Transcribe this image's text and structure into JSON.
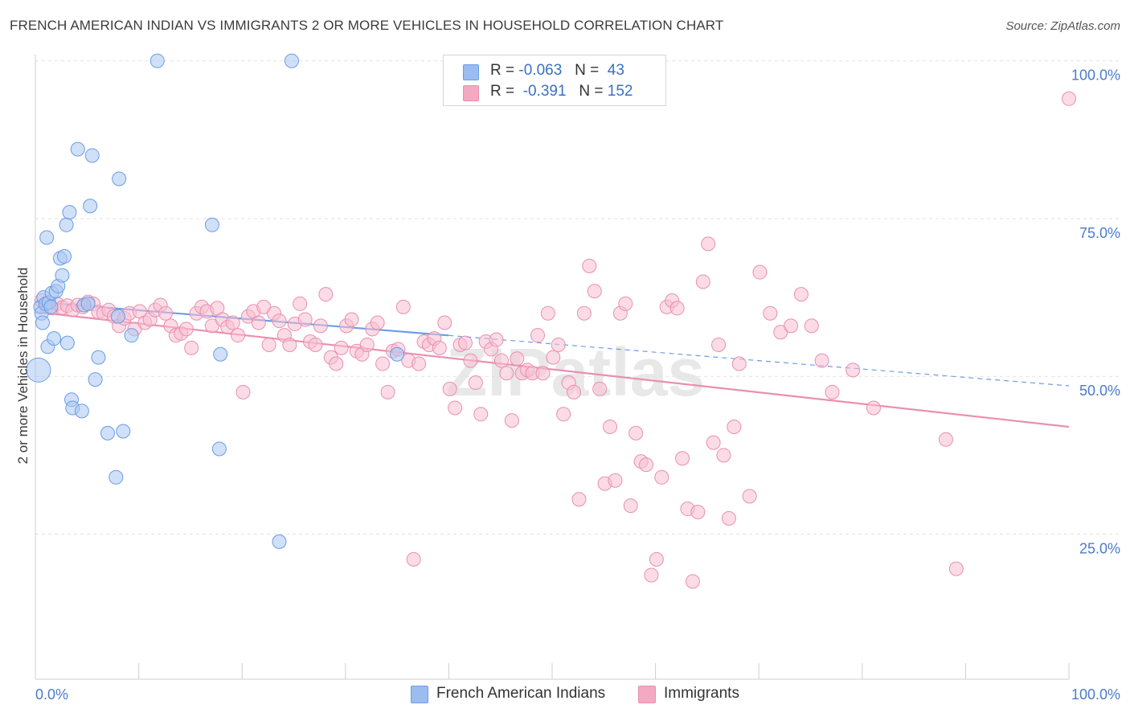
{
  "title": "FRENCH AMERICAN INDIAN VS IMMIGRANTS 2 OR MORE VEHICLES IN HOUSEHOLD CORRELATION CHART",
  "source": "Source: ZipAtlas.com",
  "watermark": "ZIPatlas",
  "legend": {
    "rows": [
      {
        "r_label": "R =",
        "r_value": "-0.063",
        "n_label": "N =",
        "n_value": "43",
        "color": "#9bbcf0"
      },
      {
        "r_label": "R =",
        "r_value": "-0.391",
        "n_label": "N =",
        "n_value": "152",
        "color": "#f4a9c2"
      }
    ]
  },
  "bottom_legend": [
    {
      "label": "French American Indians",
      "color": "#9bbcf0"
    },
    {
      "label": "Immigrants",
      "color": "#f4a9c2"
    }
  ],
  "chart_data": {
    "type": "scatter",
    "title": "FRENCH AMERICAN INDIAN VS IMMIGRANTS 2 OR MORE VEHICLES IN HOUSEHOLD CORRELATION CHART",
    "xlabel": "",
    "ylabel": "2 or more Vehicles in Household",
    "xlim": [
      0,
      100
    ],
    "ylim": [
      2,
      102
    ],
    "x_tick_labels": {
      "left": "0.0%",
      "right": "100.0%"
    },
    "y_ticks": [
      {
        "value": 100,
        "label": "100.0%"
      },
      {
        "value": 75,
        "label": "75.0%"
      },
      {
        "value": 50,
        "label": "50.0%"
      },
      {
        "value": 25,
        "label": "25.0%"
      }
    ],
    "grid": true,
    "series": [
      {
        "name": "French American Indians",
        "color": "#6a9de6",
        "fill": "#a9c6f2",
        "trend": {
          "x0": 0,
          "y0": 61.8,
          "x1": 100,
          "y1": 48.5,
          "solid_until": 40
        },
        "points": [
          [
            0.3,
            51.0
          ],
          [
            0.5,
            61.0
          ],
          [
            0.6,
            60.0
          ],
          [
            0.7,
            58.5
          ],
          [
            0.8,
            62.5
          ],
          [
            1.0,
            61.5
          ],
          [
            1.1,
            72.0
          ],
          [
            1.2,
            54.7
          ],
          [
            1.3,
            61.7
          ],
          [
            1.5,
            61.0
          ],
          [
            1.6,
            63.2
          ],
          [
            1.8,
            56.0
          ],
          [
            2.0,
            63.5
          ],
          [
            2.2,
            64.3
          ],
          [
            2.4,
            68.7
          ],
          [
            2.6,
            66.0
          ],
          [
            2.8,
            69.0
          ],
          [
            3.0,
            74.0
          ],
          [
            3.1,
            55.3
          ],
          [
            3.3,
            76.0
          ],
          [
            3.5,
            46.3
          ],
          [
            3.6,
            45.0
          ],
          [
            4.1,
            86.0
          ],
          [
            4.5,
            44.5
          ],
          [
            4.7,
            61.3
          ],
          [
            5.1,
            61.5
          ],
          [
            5.3,
            77.0
          ],
          [
            5.5,
            85.0
          ],
          [
            5.8,
            49.5
          ],
          [
            6.1,
            53.0
          ],
          [
            7.0,
            41.0
          ],
          [
            7.8,
            34.0
          ],
          [
            8.0,
            59.5
          ],
          [
            8.1,
            81.3
          ],
          [
            8.5,
            41.3
          ],
          [
            9.3,
            56.5
          ],
          [
            11.8,
            100.0
          ],
          [
            17.1,
            74.0
          ],
          [
            17.8,
            38.5
          ],
          [
            17.9,
            53.5
          ],
          [
            23.6,
            23.8
          ],
          [
            24.8,
            100.0
          ],
          [
            35.0,
            53.5
          ]
        ]
      },
      {
        "name": "Immigrants",
        "color": "#ea8fb0",
        "fill": "#f7bfd2",
        "trend": {
          "x0": 0,
          "y0": 60.2,
          "x1": 100,
          "y1": 42.0,
          "solid_until": 100
        },
        "points": [
          [
            0.6,
            62.0
          ],
          [
            1.1,
            61.0
          ],
          [
            1.6,
            60.8
          ],
          [
            2.1,
            61.5
          ],
          [
            2.6,
            60.9
          ],
          [
            3.1,
            61.2
          ],
          [
            3.6,
            60.5
          ],
          [
            4.1,
            61.3
          ],
          [
            4.6,
            61.0
          ],
          [
            5.1,
            61.8
          ],
          [
            5.6,
            61.5
          ],
          [
            6.1,
            60.2
          ],
          [
            6.6,
            60.0
          ],
          [
            7.1,
            60.5
          ],
          [
            7.6,
            59.5
          ],
          [
            8.1,
            58.0
          ],
          [
            8.6,
            59.2
          ],
          [
            9.1,
            60.0
          ],
          [
            9.6,
            57.5
          ],
          [
            10.1,
            60.3
          ],
          [
            10.6,
            58.5
          ],
          [
            11.1,
            59.0
          ],
          [
            11.6,
            60.5
          ],
          [
            12.1,
            61.3
          ],
          [
            12.6,
            60.0
          ],
          [
            13.1,
            58.0
          ],
          [
            13.6,
            56.5
          ],
          [
            14.1,
            56.8
          ],
          [
            14.6,
            57.5
          ],
          [
            15.1,
            54.5
          ],
          [
            15.6,
            60.0
          ],
          [
            16.1,
            61.0
          ],
          [
            16.6,
            60.3
          ],
          [
            17.1,
            58.0
          ],
          [
            17.6,
            60.8
          ],
          [
            18.1,
            59.0
          ],
          [
            18.6,
            57.8
          ],
          [
            19.1,
            58.5
          ],
          [
            19.6,
            56.5
          ],
          [
            20.1,
            47.5
          ],
          [
            20.6,
            59.5
          ],
          [
            21.1,
            60.3
          ],
          [
            21.6,
            58.5
          ],
          [
            22.1,
            61.0
          ],
          [
            22.6,
            55.0
          ],
          [
            23.1,
            60.0
          ],
          [
            23.6,
            58.8
          ],
          [
            24.1,
            56.5
          ],
          [
            24.6,
            55.0
          ],
          [
            25.1,
            58.3
          ],
          [
            25.6,
            61.5
          ],
          [
            26.1,
            59.0
          ],
          [
            26.6,
            55.5
          ],
          [
            27.1,
            55.0
          ],
          [
            27.6,
            58.0
          ],
          [
            28.1,
            63.0
          ],
          [
            28.6,
            53.0
          ],
          [
            29.1,
            52.0
          ],
          [
            29.6,
            54.5
          ],
          [
            30.1,
            58.0
          ],
          [
            30.6,
            59.0
          ],
          [
            31.1,
            54.0
          ],
          [
            31.6,
            53.5
          ],
          [
            32.1,
            55.0
          ],
          [
            32.6,
            57.5
          ],
          [
            33.1,
            58.5
          ],
          [
            33.6,
            52.0
          ],
          [
            34.1,
            47.5
          ],
          [
            34.6,
            54.0
          ],
          [
            35.1,
            54.3
          ],
          [
            35.6,
            61.0
          ],
          [
            36.1,
            52.5
          ],
          [
            36.6,
            21.0
          ],
          [
            37.1,
            52.0
          ],
          [
            37.6,
            55.5
          ],
          [
            38.1,
            55.0
          ],
          [
            38.6,
            56.0
          ],
          [
            39.1,
            54.5
          ],
          [
            39.6,
            58.5
          ],
          [
            40.1,
            48.0
          ],
          [
            40.6,
            45.0
          ],
          [
            41.1,
            55.0
          ],
          [
            41.6,
            55.3
          ],
          [
            42.1,
            52.5
          ],
          [
            42.6,
            49.0
          ],
          [
            43.1,
            44.0
          ],
          [
            43.6,
            55.5
          ],
          [
            44.1,
            54.3
          ],
          [
            44.6,
            55.8
          ],
          [
            45.1,
            52.5
          ],
          [
            45.6,
            50.5
          ],
          [
            46.1,
            43.0
          ],
          [
            46.6,
            52.8
          ],
          [
            47.1,
            50.5
          ],
          [
            47.6,
            51.0
          ],
          [
            48.1,
            50.5
          ],
          [
            48.6,
            56.5
          ],
          [
            49.1,
            50.5
          ],
          [
            49.6,
            60.0
          ],
          [
            50.1,
            53.0
          ],
          [
            50.6,
            55.0
          ],
          [
            51.1,
            44.0
          ],
          [
            51.6,
            49.0
          ],
          [
            52.1,
            47.5
          ],
          [
            52.6,
            30.5
          ],
          [
            53.1,
            60.0
          ],
          [
            53.6,
            67.5
          ],
          [
            54.1,
            63.5
          ],
          [
            54.6,
            48.0
          ],
          [
            55.1,
            33.0
          ],
          [
            55.6,
            42.0
          ],
          [
            56.1,
            33.5
          ],
          [
            56.6,
            60.0
          ],
          [
            57.1,
            61.5
          ],
          [
            57.6,
            29.5
          ],
          [
            58.1,
            41.0
          ],
          [
            58.6,
            36.5
          ],
          [
            59.1,
            36.0
          ],
          [
            59.6,
            18.5
          ],
          [
            60.1,
            21.0
          ],
          [
            60.6,
            34.0
          ],
          [
            61.1,
            61.0
          ],
          [
            61.6,
            62.0
          ],
          [
            62.1,
            60.8
          ],
          [
            62.6,
            37.0
          ],
          [
            63.1,
            29.0
          ],
          [
            63.6,
            17.5
          ],
          [
            64.1,
            28.5
          ],
          [
            64.6,
            65.0
          ],
          [
            65.1,
            71.0
          ],
          [
            65.6,
            39.5
          ],
          [
            66.1,
            55.0
          ],
          [
            66.6,
            37.5
          ],
          [
            67.1,
            27.5
          ],
          [
            67.6,
            42.0
          ],
          [
            68.1,
            52.0
          ],
          [
            69.1,
            31.0
          ],
          [
            70.1,
            66.5
          ],
          [
            71.1,
            60.0
          ],
          [
            72.1,
            57.0
          ],
          [
            73.1,
            58.0
          ],
          [
            74.1,
            63.0
          ],
          [
            75.1,
            58.0
          ],
          [
            76.1,
            52.5
          ],
          [
            77.1,
            47.5
          ],
          [
            79.1,
            51.0
          ],
          [
            81.1,
            45.0
          ],
          [
            88.1,
            40.0
          ],
          [
            89.1,
            19.5
          ],
          [
            100.0,
            94.0
          ]
        ]
      }
    ]
  }
}
